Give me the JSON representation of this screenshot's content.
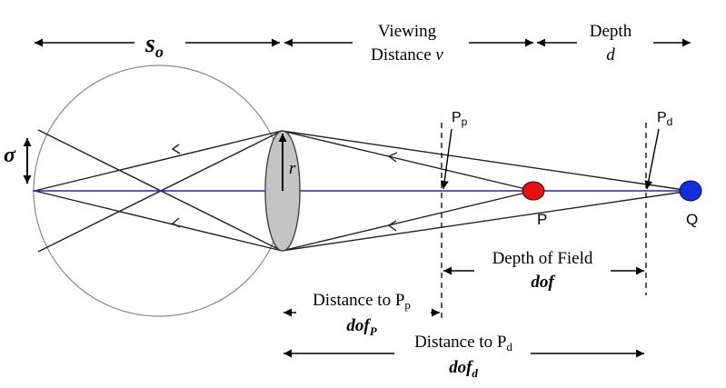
{
  "labels": {
    "so": "s",
    "so_sub": "o",
    "viewing_line1": "Viewing",
    "viewing_line2": "Distance",
    "viewing_var": "v",
    "depth_line1": "Depth",
    "depth_var": "d",
    "sigma": "σ",
    "r": "r",
    "pp": "P",
    "pp_sub": "p",
    "pd": "P",
    "pd_sub": "d",
    "point_p": "P",
    "point_q": "Q",
    "dof_title": "Depth of Field",
    "dof_var": "dof",
    "dist_pp_text": "Distance to P",
    "dist_pp_sub": "p",
    "dofp_var": "dof",
    "dofp_sub": "P",
    "dist_pd_text": "Distance to P",
    "dist_pd_sub": "d",
    "dofd_var": "dof",
    "dofd_sub": "d"
  },
  "colors": {
    "optical_axis": "#2424cc",
    "point_p": "#e81010",
    "point_q": "#1030e0",
    "lens_fill": "#c4c4c4"
  }
}
